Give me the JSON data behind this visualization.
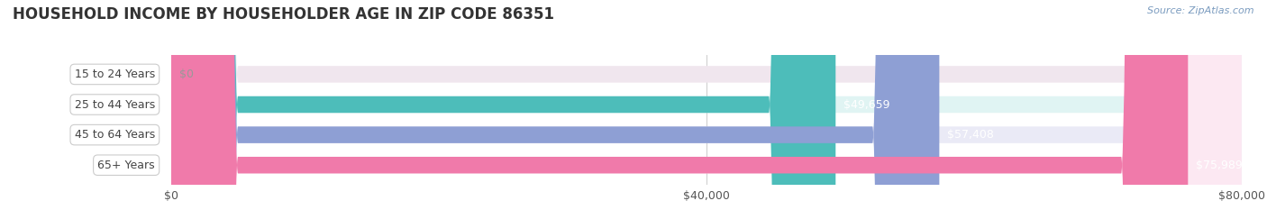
{
  "title": "HOUSEHOLD INCOME BY HOUSEHOLDER AGE IN ZIP CODE 86351",
  "source": "Source: ZipAtlas.com",
  "categories": [
    "15 to 24 Years",
    "25 to 44 Years",
    "45 to 64 Years",
    "65+ Years"
  ],
  "values": [
    0,
    49659,
    57408,
    75989
  ],
  "bar_colors": [
    "#d9a8c8",
    "#4dbdba",
    "#8e9fd4",
    "#f07aaa"
  ],
  "bar_bg_colors": [
    "#f0e6ee",
    "#e0f4f3",
    "#eaeaf6",
    "#fce8f2"
  ],
  "value_labels": [
    "$0",
    "$49,659",
    "$57,408",
    "$75,989"
  ],
  "xlim": [
    0,
    80000
  ],
  "xticks": [
    0,
    40000,
    80000
  ],
  "xtick_labels": [
    "$0",
    "$40,000",
    "$80,000"
  ],
  "title_fontsize": 12,
  "label_fontsize": 9,
  "bar_height": 0.55,
  "background_color": "#ffffff"
}
